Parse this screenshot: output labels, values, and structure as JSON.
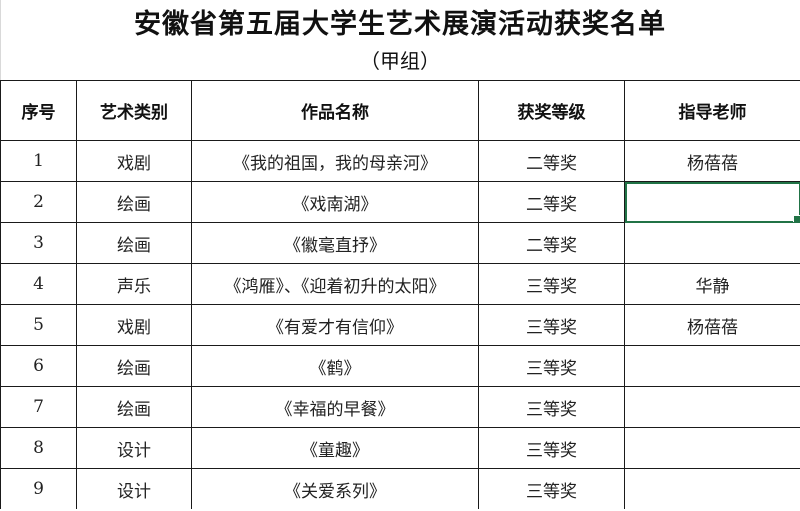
{
  "title": "安徽省第五届大学生艺术展演活动获奖名单",
  "subtitle": "（甲组）",
  "table": {
    "headers": [
      "序号",
      "艺术类别",
      "作品名称",
      "获奖等级",
      "指导老师"
    ],
    "rows": [
      {
        "no": "1",
        "category": "戏剧",
        "work": "《我的祖国，我的母亲河》",
        "award": "二等奖",
        "teacher": "杨蓓蓓"
      },
      {
        "no": "2",
        "category": "绘画",
        "work": "《戏南湖》",
        "award": "二等奖",
        "teacher": ""
      },
      {
        "no": "3",
        "category": "绘画",
        "work": "《徽毫直抒》",
        "award": "二等奖",
        "teacher": ""
      },
      {
        "no": "4",
        "category": "声乐",
        "work": "《鸿雁》、《迎着初升的太阳》",
        "award": "三等奖",
        "teacher": "华静"
      },
      {
        "no": "5",
        "category": "戏剧",
        "work": "《有爱才有信仰》",
        "award": "三等奖",
        "teacher": "杨蓓蓓"
      },
      {
        "no": "6",
        "category": "绘画",
        "work": "《鹤》",
        "award": "三等奖",
        "teacher": ""
      },
      {
        "no": "7",
        "category": "绘画",
        "work": "《幸福的早餐》",
        "award": "三等奖",
        "teacher": ""
      },
      {
        "no": "8",
        "category": "设计",
        "work": "《童趣》",
        "award": "三等奖",
        "teacher": ""
      },
      {
        "no": "9",
        "category": "设计",
        "work": "《关爱系列》",
        "award": "三等奖",
        "teacher": ""
      }
    ]
  },
  "selection": {
    "row_index": 1,
    "column": "teacher",
    "accent_color": "#217346"
  }
}
